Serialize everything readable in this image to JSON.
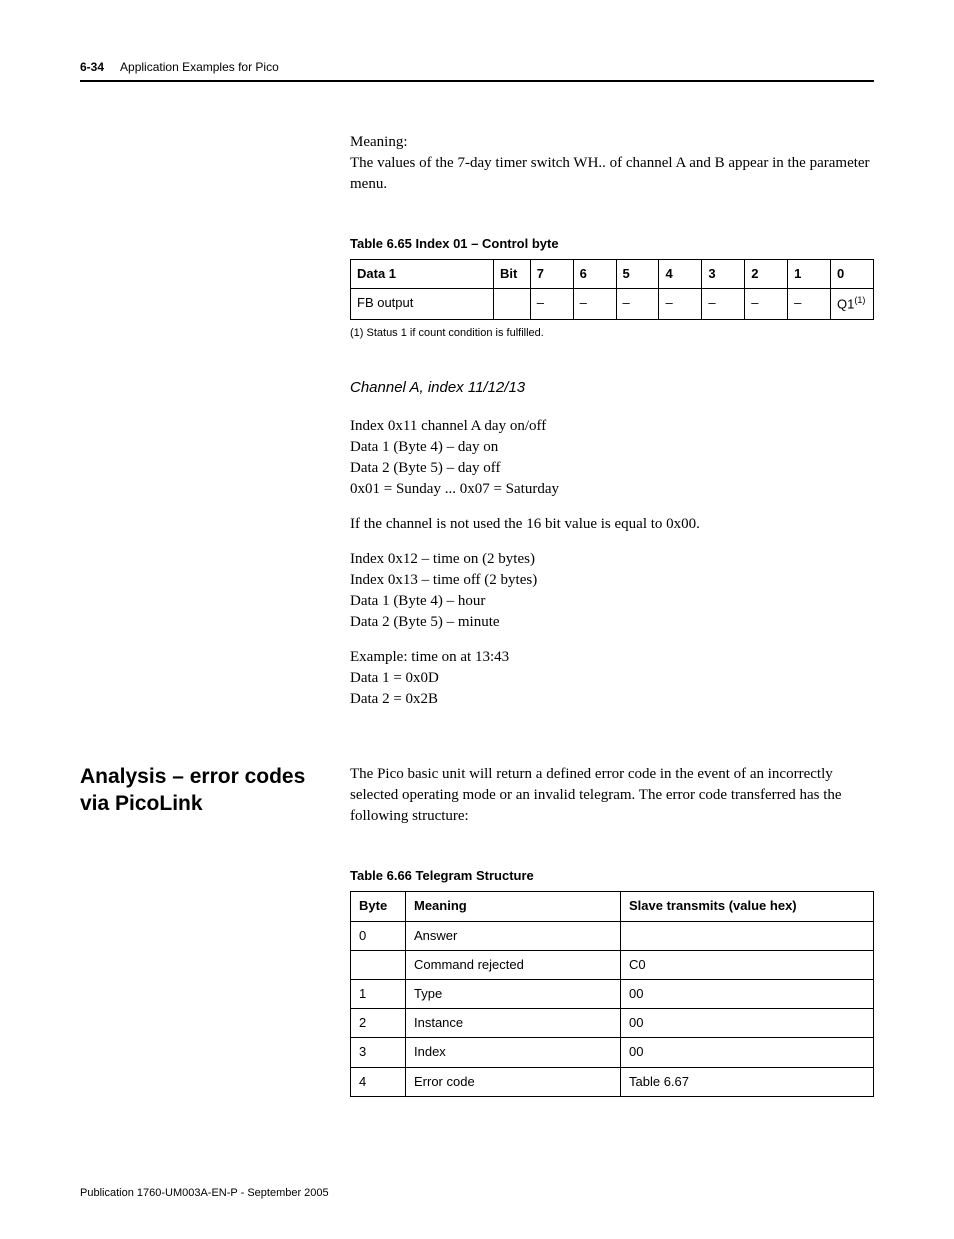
{
  "header": {
    "page_number": "6-34",
    "chapter_title": "Application Examples for Pico"
  },
  "intro": {
    "label": "Meaning:",
    "text": "The values of the 7-day timer switch WH.. of channel A and B appear in the parameter menu."
  },
  "table65": {
    "caption": "Table 6.65 Index 01 – Control byte",
    "headers": [
      "Data 1",
      "Bit",
      "7",
      "6",
      "5",
      "4",
      "3",
      "2",
      "1",
      "0"
    ],
    "row_label": "FB output",
    "row_cells": [
      "",
      "–",
      "–",
      "–",
      "–",
      "–",
      "–",
      "–"
    ],
    "last_cell_prefix": "Q1",
    "last_cell_sup": "(1)",
    "footnote": "(1)   Status 1 if count condition is fulfilled."
  },
  "channelA": {
    "heading": "Channel A, index 11/12/13",
    "block1": [
      "Index 0x11 channel A day on/off",
      "Data 1 (Byte 4) – day on",
      "Data 2 (Byte 5) – day off",
      "0x01 = Sunday ... 0x07 = Saturday"
    ],
    "block2": "If the channel is not used the 16 bit value is equal to 0x00.",
    "block3": [
      "Index 0x12 – time on (2 bytes)",
      "Index 0x13 – time off (2 bytes)",
      "Data 1 (Byte 4) – hour",
      "Data 2 (Byte 5) – minute"
    ],
    "block4": [
      "Example: time on at 13:43",
      "Data 1 = 0x0D",
      "Data 2 = 0x2B"
    ]
  },
  "analysis": {
    "heading": "Analysis – error codes via PicoLink",
    "para": "The Pico basic unit will return a defined error code in the event of an incorrectly selected operating mode or an invalid telegram. The error code transferred has the following structure:"
  },
  "table66": {
    "caption": "Table 6.66 Telegram Structure",
    "headers": [
      "Byte",
      "Meaning",
      "Slave transmits (value hex)"
    ],
    "rows": [
      [
        "0",
        "Answer",
        ""
      ],
      [
        "",
        "Command rejected",
        "C0"
      ],
      [
        "1",
        "Type",
        "00"
      ],
      [
        "2",
        "Instance",
        "00"
      ],
      [
        "3",
        "Index",
        "00"
      ],
      [
        "4",
        "Error code",
        "Table 6.67"
      ]
    ]
  },
  "footer": {
    "publication": "Publication 1760-UM003A-EN-P - September 2005"
  }
}
